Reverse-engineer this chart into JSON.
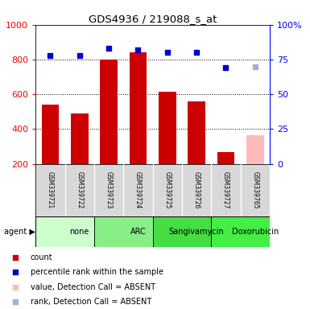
{
  "title": "GDS4936 / 219088_s_at",
  "samples": [
    "GSM339721",
    "GSM339722",
    "GSM339723",
    "GSM339724",
    "GSM339725",
    "GSM339726",
    "GSM339727",
    "GSM339765"
  ],
  "bar_values": [
    540,
    490,
    800,
    840,
    615,
    560,
    265,
    365
  ],
  "bar_colors": [
    "#cc0000",
    "#cc0000",
    "#cc0000",
    "#cc0000",
    "#cc0000",
    "#cc0000",
    "#cc0000",
    "#ffbbbb"
  ],
  "scatter_values": [
    78,
    78,
    83,
    82,
    80,
    80,
    69,
    70
  ],
  "scatter_colors": [
    "#0000cc",
    "#0000cc",
    "#0000cc",
    "#0000cc",
    "#0000cc",
    "#0000cc",
    "#0000cc",
    "#aaaadd"
  ],
  "agents": [
    {
      "label": "none",
      "start": 0,
      "end": 2,
      "color": "#ccffcc"
    },
    {
      "label": "ARC",
      "start": 2,
      "end": 4,
      "color": "#88ee88"
    },
    {
      "label": "Sangivamycin",
      "start": 4,
      "end": 6,
      "color": "#44dd44"
    },
    {
      "label": "Doxorubicin",
      "start": 6,
      "end": 8,
      "color": "#44ee44"
    }
  ],
  "ylim_left": [
    200,
    1000
  ],
  "ylim_right": [
    0,
    100
  ],
  "yticks_left": [
    200,
    400,
    600,
    800,
    1000
  ],
  "yticks_right": [
    0,
    25,
    50,
    75,
    100
  ],
  "grid_values": [
    400,
    600,
    800
  ],
  "bar_width": 0.6,
  "legend_items": [
    {
      "label": "count",
      "color": "#cc0000",
      "marker": "s"
    },
    {
      "label": "percentile rank within the sample",
      "color": "#0000cc",
      "marker": "s"
    },
    {
      "label": "value, Detection Call = ABSENT",
      "color": "#ffbbbb",
      "marker": "s"
    },
    {
      "label": "rank, Detection Call = ABSENT",
      "color": "#aaaadd",
      "marker": "s"
    }
  ]
}
